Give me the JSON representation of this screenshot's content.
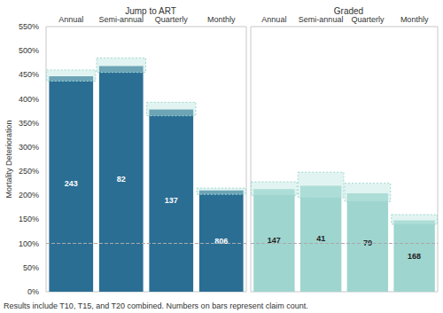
{
  "chart_data": [
    {
      "type": "bar",
      "title": "Jump to ART",
      "ylabel": "Mortality Deterioration",
      "categories": [
        "Annual",
        "Semi-annual",
        "Quarterly",
        "Monthly"
      ],
      "values": [
        447,
        468,
        378,
        210
      ],
      "ci_low": [
        437,
        455,
        365,
        202
      ],
      "ci_high": [
        460,
        485,
        393,
        215
      ],
      "claim_counts": [
        243,
        82,
        137,
        806
      ],
      "color": "#2b6e94",
      "reference_line": 100,
      "ylim": [
        0,
        550
      ],
      "yticks": [
        {
          "value": 0,
          "label": "0%"
        },
        {
          "value": 50,
          "label": "50%"
        },
        {
          "value": 100,
          "label": "100%"
        },
        {
          "value": 150,
          "label": "150%"
        },
        {
          "value": 200,
          "label": "200%"
        },
        {
          "value": 250,
          "label": "250%"
        },
        {
          "value": 300,
          "label": "300%"
        },
        {
          "value": 350,
          "label": "350%"
        },
        {
          "value": 400,
          "label": "400%"
        },
        {
          "value": 450,
          "label": "450%"
        },
        {
          "value": 500,
          "label": "500%"
        },
        {
          "value": 550,
          "label": "550%"
        }
      ],
      "grid": false
    },
    {
      "type": "bar",
      "title": "Graded",
      "categories": [
        "Annual",
        "Semi-annual",
        "Quarterly",
        "Monthly"
      ],
      "values": [
        213,
        220,
        204,
        148
      ],
      "ci_low": [
        200,
        195,
        187,
        140
      ],
      "ci_high": [
        228,
        248,
        225,
        160
      ],
      "claim_counts": [
        147,
        41,
        79,
        168
      ],
      "color": "#9ed5cf",
      "reference_line": 100,
      "ylim": [
        0,
        550
      ],
      "yticks": [
        {
          "value": 0,
          "label": "0%"
        },
        {
          "value": 50,
          "label": "50%"
        },
        {
          "value": 100,
          "label": "100%"
        },
        {
          "value": 150,
          "label": "150%"
        },
        {
          "value": 200,
          "label": "200%"
        },
        {
          "value": 250,
          "label": "250%"
        },
        {
          "value": 300,
          "label": "300%"
        },
        {
          "value": 350,
          "label": "350%"
        },
        {
          "value": 400,
          "label": "400%"
        },
        {
          "value": 450,
          "label": "450%"
        },
        {
          "value": 500,
          "label": "500%"
        },
        {
          "value": 550,
          "label": "550%"
        }
      ],
      "grid": false,
      "tick_labels": "x"
    }
  ],
  "footnote": "Results include T10, T15, and T20 combined. Numbers on bars represent claim count."
}
